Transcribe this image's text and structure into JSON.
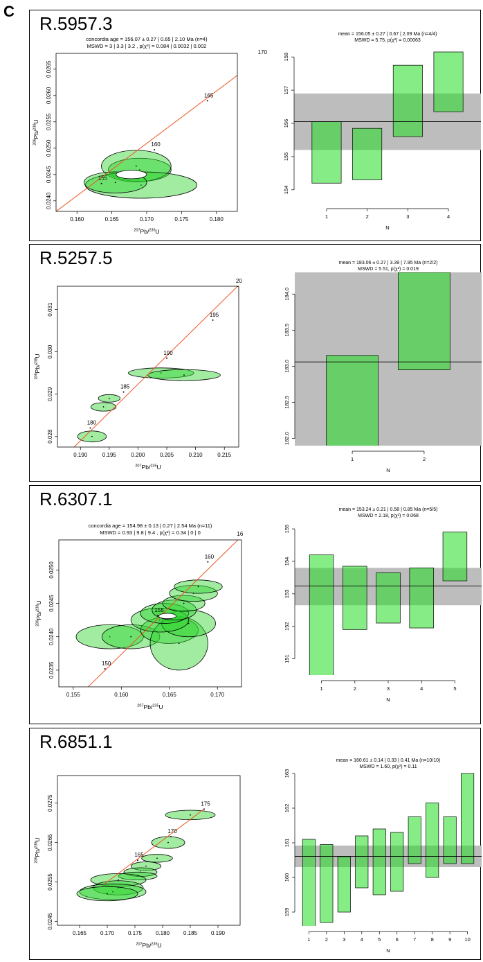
{
  "figure_label": "C",
  "chart_data": [
    {
      "type": "scatter",
      "panel": "R.5957.3",
      "kind": "concordia",
      "title_lines": [
        "concordia age = 156.07 ± 0.27 | 0.65 | 2.10 Ma (n=4)",
        "MSWD = 3 | 3.3 | 3.2 , p(χ²) = 0.084 | 0.0032 | 0.002"
      ],
      "xlabel": "207Pb/235U",
      "ylabel": "206Pb/238U",
      "xlim": [
        0.157,
        0.183
      ],
      "ylim": [
        0.0238,
        0.0268
      ],
      "xticks": [
        "0.160",
        "0.165",
        "0.170",
        "0.175",
        "0.180"
      ],
      "yticks": [
        "0.0240",
        "0.0245",
        "0.0250",
        "0.0255",
        "0.0260",
        "0.0265"
      ],
      "age_ticks": [
        {
          "label": "155",
          "x": 0.1635,
          "y": 0.02433
        },
        {
          "label": "160",
          "x": 0.1711,
          "y": 0.02497
        },
        {
          "label": "165",
          "x": 0.1787,
          "y": 0.0259
        },
        {
          "label": "170",
          "x": 0.1864,
          "y": 0.02672
        }
      ],
      "ellipses": [
        {
          "x": 0.169,
          "y": 0.02459,
          "rx": 0.0045,
          "ry": 0.00022,
          "rot": 0
        },
        {
          "x": 0.1685,
          "y": 0.02466,
          "rx": 0.005,
          "ry": 0.0003,
          "rot": 0
        },
        {
          "x": 0.1692,
          "y": 0.0243,
          "rx": 0.008,
          "ry": 0.00025,
          "rot": 0
        },
        {
          "x": 0.1655,
          "y": 0.02435,
          "rx": 0.0045,
          "ry": 0.0002,
          "rot": 0
        }
      ],
      "mean_ellipse": {
        "x": 0.1678,
        "y": 0.0245,
        "rx": 0.0022,
        "ry": 8e-05
      }
    },
    {
      "type": "bar",
      "panel": "R.5957.3",
      "kind": "weighted-mean",
      "title_lines": [
        "mean = 156.05 ± 0.27 | 0.67 | 2.09 Ma (n=4/4)",
        "MSWD = 5.75, p(χ²) = 0.00063"
      ],
      "xlabel": "N",
      "categories": [
        "1",
        "2",
        "3",
        "4"
      ],
      "ylim": [
        153.6,
        158.4
      ],
      "yticks": [
        "154",
        "155",
        "156",
        "157",
        "158"
      ],
      "mean": 156.05,
      "band": [
        155.2,
        156.9
      ],
      "bars": [
        [
          154.2,
          156.05
        ],
        [
          154.3,
          155.85
        ],
        [
          155.6,
          157.75
        ],
        [
          156.35,
          158.15
        ]
      ]
    },
    {
      "type": "scatter",
      "panel": "R.5257.5",
      "kind": "concordia",
      "title_lines": [],
      "xlabel": "207Pb/235U",
      "ylabel": "206Pb/238U",
      "xlim": [
        0.186,
        0.2175
      ],
      "ylim": [
        0.02775,
        0.03155
      ],
      "xticks": [
        "0.190",
        "0.195",
        "0.200",
        "0.205",
        "0.210",
        "0.215"
      ],
      "yticks": [
        "0.028",
        "0.029",
        "0.030",
        "0.031"
      ],
      "age_ticks": [
        {
          "label": "180",
          "x": 0.1917,
          "y": 0.0282
        },
        {
          "label": "185",
          "x": 0.1975,
          "y": 0.02905
        },
        {
          "label": "190",
          "x": 0.205,
          "y": 0.02985
        },
        {
          "label": "195",
          "x": 0.213,
          "y": 0.03075
        },
        {
          "label": "20",
          "x": 0.2173,
          "y": 0.03155
        }
      ],
      "ellipses": [
        {
          "x": 0.192,
          "y": 0.028,
          "rx": 0.0025,
          "ry": 0.00013,
          "rot": 0
        },
        {
          "x": 0.194,
          "y": 0.0287,
          "rx": 0.0022,
          "ry": 0.0001,
          "rot": 0
        },
        {
          "x": 0.195,
          "y": 0.0289,
          "rx": 0.0019,
          "ry": 9e-05,
          "rot": 0
        },
        {
          "x": 0.204,
          "y": 0.0295,
          "rx": 0.0057,
          "ry": 0.00012,
          "rot": 0
        },
        {
          "x": 0.208,
          "y": 0.02945,
          "rx": 0.0063,
          "ry": 0.00013,
          "rot": 0
        }
      ],
      "mean_ellipse": null
    },
    {
      "type": "bar",
      "panel": "R.5257.5",
      "kind": "weighted-mean",
      "title_lines": [
        "mean = 183.06 ± 0.27 | 3.39 | 7.95 Ma (n=2/2)",
        "MSWD = 5.51, p(χ²) = 0.019"
      ],
      "xlabel": "N",
      "categories": [
        "1",
        "2"
      ],
      "ylim": [
        181.9,
        184.3
      ],
      "yticks": [
        "182.0",
        "182.5",
        "183.0",
        "183.5",
        "184.0"
      ],
      "mean": 183.06,
      "band": [
        181.5,
        185.0
      ],
      "bars": [
        [
          181.8,
          183.15
        ],
        [
          182.95,
          184.3
        ]
      ]
    },
    {
      "type": "scatter",
      "panel": "R.6307.1",
      "kind": "concordia",
      "title_lines": [
        "concordia age = 154.98 ± 0.13 | 0.27 | 2.54 Ma (n=11)",
        "MSWD = 0.93 | 9.8 | 9.4 , p(χ²) = 0.34 | 0 | 0"
      ],
      "xlabel": "207Pb/235U",
      "ylabel": "206Pb/238U",
      "xlim": [
        0.1535,
        0.1725
      ],
      "ylim": [
        0.02325,
        0.02545
      ],
      "xticks": [
        "0.155",
        "0.160",
        "0.165",
        "0.170"
      ],
      "yticks": [
        "0.0235",
        "0.0240",
        "0.0245",
        "0.0250"
      ],
      "age_ticks": [
        {
          "label": "150",
          "x": 0.1583,
          "y": 0.02352
        },
        {
          "label": "155",
          "x": 0.1638,
          "y": 0.02432
        },
        {
          "label": "160",
          "x": 0.169,
          "y": 0.02512
        },
        {
          "label": "16",
          "x": 0.1722,
          "y": 0.02546
        }
      ],
      "ellipses": [
        {
          "x": 0.1588,
          "y": 0.024,
          "rx": 0.0035,
          "ry": 0.00018,
          "rot": 0
        },
        {
          "x": 0.161,
          "y": 0.024,
          "rx": 0.003,
          "ry": 0.00018,
          "rot": 0
        },
        {
          "x": 0.165,
          "y": 0.0241,
          "rx": 0.003,
          "ry": 0.0002,
          "rot": 0
        },
        {
          "x": 0.166,
          "y": 0.0239,
          "rx": 0.003,
          "ry": 0.0004,
          "rot": 0
        },
        {
          "x": 0.167,
          "y": 0.0242,
          "rx": 0.0028,
          "ry": 0.0002,
          "rot": 0
        },
        {
          "x": 0.164,
          "y": 0.02425,
          "rx": 0.003,
          "ry": 0.00018,
          "rot": 0
        },
        {
          "x": 0.1645,
          "y": 0.02435,
          "rx": 0.0025,
          "ry": 0.00015,
          "rot": 0
        },
        {
          "x": 0.1655,
          "y": 0.0244,
          "rx": 0.0023,
          "ry": 0.00015,
          "rot": 0
        },
        {
          "x": 0.1665,
          "y": 0.0245,
          "rx": 0.0022,
          "ry": 0.00012,
          "rot": 0
        },
        {
          "x": 0.1675,
          "y": 0.02465,
          "rx": 0.0025,
          "ry": 0.00012,
          "rot": 0
        },
        {
          "x": 0.168,
          "y": 0.02475,
          "rx": 0.0025,
          "ry": 0.0001,
          "rot": 0
        }
      ],
      "mean_ellipse": {
        "x": 0.1648,
        "y": 0.02431,
        "rx": 0.0009,
        "ry": 4e-05
      }
    },
    {
      "type": "bar",
      "panel": "R.6307.1",
      "kind": "weighted-mean",
      "title_lines": [
        "mean = 153.24 ± 0.21 | 0.58 | 0.85 Ma (n=5/5)",
        "MSWD = 2.18, p(χ²) = 0.068"
      ],
      "xlabel": "N",
      "categories": [
        "1",
        "2",
        "3",
        "4",
        "5"
      ],
      "ylim": [
        150.5,
        155.3
      ],
      "yticks": [
        "151",
        "152",
        "153",
        "154",
        "155"
      ],
      "mean": 153.24,
      "band": [
        152.65,
        153.8
      ],
      "bars": [
        [
          150.3,
          154.2
        ],
        [
          151.9,
          153.85
        ],
        [
          152.1,
          153.65
        ],
        [
          151.95,
          153.8
        ],
        [
          153.4,
          154.9
        ]
      ]
    },
    {
      "type": "scatter",
      "panel": "R.6851.1",
      "kind": "concordia",
      "title_lines": [],
      "xlabel": "207Pb/235U",
      "ylabel": "206Pb/238U",
      "xlim": [
        0.161,
        0.194
      ],
      "ylim": [
        0.0244,
        0.0282
      ],
      "xticks": [
        "0.165",
        "0.170",
        "0.175",
        "0.180",
        "0.185",
        "0.190"
      ],
      "yticks": [
        "0.0245",
        "0.0255",
        "0.0265",
        "0.0275"
      ],
      "age_ticks": [
        {
          "label": "165",
          "x": 0.1755,
          "y": 0.02605
        },
        {
          "label": "170",
          "x": 0.1815,
          "y": 0.02665
        },
        {
          "label": "175",
          "x": 0.1875,
          "y": 0.02735
        }
      ],
      "ellipses": [
        {
          "x": 0.185,
          "y": 0.0272,
          "rx": 0.0045,
          "ry": 0.00012,
          "rot": 0
        },
        {
          "x": 0.181,
          "y": 0.0265,
          "rx": 0.003,
          "ry": 0.00015,
          "rot": 0
        },
        {
          "x": 0.179,
          "y": 0.0261,
          "rx": 0.0028,
          "ry": 0.0001,
          "rot": 0
        },
        {
          "x": 0.177,
          "y": 0.0259,
          "rx": 0.0027,
          "ry": 0.00011,
          "rot": 0
        },
        {
          "x": 0.176,
          "y": 0.02575,
          "rx": 0.003,
          "ry": 0.00011,
          "rot": 0
        },
        {
          "x": 0.1755,
          "y": 0.02565,
          "rx": 0.0035,
          "ry": 0.0001,
          "rot": 0
        },
        {
          "x": 0.172,
          "y": 0.02555,
          "rx": 0.005,
          "ry": 0.00016,
          "rot": 0
        },
        {
          "x": 0.172,
          "y": 0.02535,
          "rx": 0.0045,
          "ry": 0.00018,
          "rot": 0
        },
        {
          "x": 0.171,
          "y": 0.02525,
          "rx": 0.006,
          "ry": 0.0002,
          "rot": 0
        },
        {
          "x": 0.17,
          "y": 0.0252,
          "rx": 0.0055,
          "ry": 0.00018,
          "rot": 0
        }
      ],
      "mean_ellipse": null
    },
    {
      "type": "bar",
      "panel": "R.6851.1",
      "kind": "weighted-mean",
      "title_lines": [
        "mean = 160.61 ± 0.14 | 0.33 | 0.41 Ma (n=10/10)",
        "MSWD = 1.60, p(χ²) = 0.11"
      ],
      "xlabel": "N",
      "categories": [
        "1",
        "2",
        "3",
        "4",
        "5",
        "6",
        "7",
        "8",
        "9",
        "10"
      ],
      "ylim": [
        158.6,
        163.1
      ],
      "yticks": [
        "159",
        "160",
        "161",
        "162",
        "163"
      ],
      "mean": 160.61,
      "band": [
        160.3,
        160.92
      ],
      "bars": [
        [
          158.5,
          161.1
        ],
        [
          158.7,
          160.95
        ],
        [
          159.0,
          160.6
        ],
        [
          159.7,
          161.2
        ],
        [
          159.5,
          161.4
        ],
        [
          159.6,
          161.3
        ],
        [
          160.4,
          161.75
        ],
        [
          160.0,
          162.15
        ],
        [
          160.4,
          161.75
        ],
        [
          160.4,
          163.0
        ]
      ]
    }
  ]
}
